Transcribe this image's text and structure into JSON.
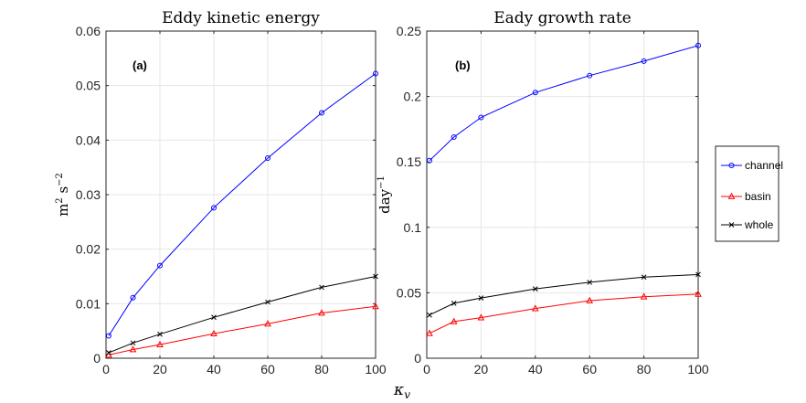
{
  "chart_data": [
    {
      "type": "line",
      "panel_label": "(a)",
      "title": "Eddy kinetic energy",
      "ylabel": {
        "base_1": "m",
        "exp_1": "2",
        "base_2": " s",
        "exp_2": "−2"
      },
      "xlim": [
        0,
        100
      ],
      "ylim": [
        0,
        0.06
      ],
      "xticks": [
        0,
        20,
        40,
        60,
        80,
        100
      ],
      "yticks": [
        0,
        0.01,
        0.02,
        0.03,
        0.04,
        0.05,
        0.06
      ],
      "ytick_labels": [
        "0",
        "0.01",
        "0.02",
        "0.03",
        "0.04",
        "0.05",
        "0.06"
      ],
      "grid": true,
      "x": [
        1,
        10,
        20,
        40,
        60,
        80,
        100
      ],
      "series": [
        {
          "name": "channel",
          "color": "#0000ff",
          "marker": "circle",
          "values": [
            0.0041,
            0.0111,
            0.017,
            0.0276,
            0.0367,
            0.045,
            0.0522
          ]
        },
        {
          "name": "basin",
          "color": "#ff0000",
          "marker": "triangle",
          "values": [
            0.0006,
            0.0016,
            0.0025,
            0.0045,
            0.0063,
            0.0083,
            0.0095
          ]
        },
        {
          "name": "whole",
          "color": "#000000",
          "marker": "x",
          "values": [
            0.001,
            0.0028,
            0.0044,
            0.0075,
            0.0103,
            0.013,
            0.015
          ]
        }
      ]
    },
    {
      "type": "line",
      "panel_label": "(b)",
      "title": "Eady growth rate",
      "ylabel": {
        "base_1": "day",
        "exp_1": "−1"
      },
      "xlim": [
        0,
        100
      ],
      "ylim": [
        0,
        0.25
      ],
      "xticks": [
        0,
        20,
        40,
        60,
        80,
        100
      ],
      "yticks": [
        0,
        0.05,
        0.1,
        0.15,
        0.2,
        0.25
      ],
      "ytick_labels": [
        "0",
        "0.05",
        "0.1",
        "0.15",
        "0.2",
        "0.25"
      ],
      "grid": true,
      "x": [
        1,
        10,
        20,
        40,
        60,
        80,
        100
      ],
      "series": [
        {
          "name": "channel",
          "color": "#0000ff",
          "marker": "circle",
          "values": [
            0.151,
            0.169,
            0.184,
            0.203,
            0.216,
            0.227,
            0.239
          ]
        },
        {
          "name": "basin",
          "color": "#ff0000",
          "marker": "triangle",
          "values": [
            0.019,
            0.028,
            0.031,
            0.038,
            0.044,
            0.047,
            0.049
          ]
        },
        {
          "name": "whole",
          "color": "#000000",
          "marker": "x",
          "values": [
            0.033,
            0.042,
            0.046,
            0.053,
            0.058,
            0.062,
            0.064
          ]
        }
      ]
    }
  ],
  "shared_xlabel": {
    "base": "κ",
    "sub": "v"
  },
  "legend": {
    "position": "right",
    "items": [
      {
        "name": "channel",
        "color": "#0000ff",
        "marker": "circle"
      },
      {
        "name": "basin",
        "color": "#ff0000",
        "marker": "triangle"
      },
      {
        "name": "whole",
        "color": "#000000",
        "marker": "x"
      }
    ]
  }
}
